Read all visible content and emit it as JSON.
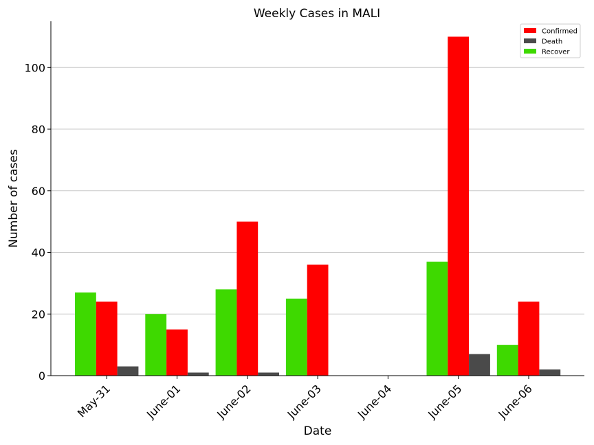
{
  "chart_data": {
    "type": "bar",
    "title": "Weekly Cases in MALI",
    "xlabel": "Date",
    "ylabel": "Number of cases",
    "categories": [
      "May-31",
      "June-01",
      "June-02",
      "June-03",
      "June-04",
      "June-05",
      "June-06"
    ],
    "series": [
      {
        "name": "Recover",
        "color": "#3ed900",
        "values": [
          27,
          20,
          28,
          25,
          0,
          37,
          10
        ]
      },
      {
        "name": "Confirmed",
        "color": "#ff0000",
        "values": [
          24,
          15,
          50,
          36,
          0,
          110,
          24
        ]
      },
      {
        "name": "Death",
        "color": "#4a4a4a",
        "values": [
          3,
          1,
          1,
          0,
          0,
          7,
          2
        ]
      }
    ],
    "legend_order": [
      "Confirmed",
      "Death",
      "Recover"
    ],
    "legend_position": "top-right",
    "ylim": [
      0,
      115
    ],
    "yticks": [
      0,
      20,
      40,
      60,
      80,
      100
    ],
    "grid": "horizontal"
  }
}
